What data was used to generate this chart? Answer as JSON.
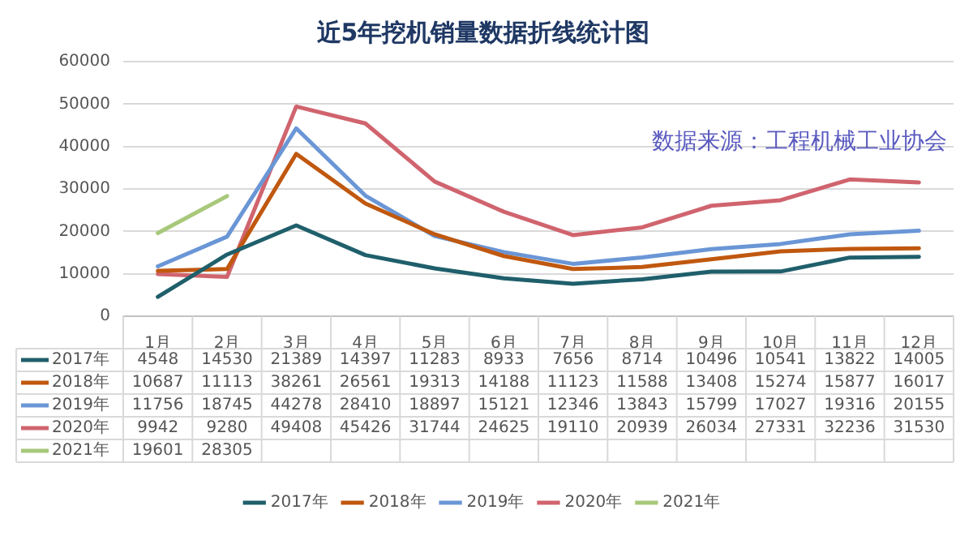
{
  "chart_data": {
    "type": "line",
    "title": "近5年挖机销量数据折线统计图",
    "categories": [
      "1月",
      "2月",
      "3月",
      "4月",
      "5月",
      "6月",
      "7月",
      "8月",
      "9月",
      "10月",
      "11月",
      "12月"
    ],
    "series": [
      {
        "name": "2017年",
        "color": "#1f5f6b",
        "values": [
          4548,
          14530,
          21389,
          14397,
          11283,
          8933,
          7656,
          8714,
          10496,
          10541,
          13822,
          14005
        ]
      },
      {
        "name": "2018年",
        "color": "#c0580f",
        "values": [
          10687,
          11113,
          38261,
          26561,
          19313,
          14188,
          11123,
          11588,
          13408,
          15274,
          15877,
          16017
        ]
      },
      {
        "name": "2019年",
        "color": "#6a96d6",
        "values": [
          11756,
          18745,
          44278,
          28410,
          18897,
          15121,
          12346,
          13843,
          15799,
          17027,
          19316,
          20155
        ]
      },
      {
        "name": "2020年",
        "color": "#d0646e",
        "values": [
          9942,
          9280,
          49408,
          45426,
          31744,
          24625,
          19110,
          20939,
          26034,
          27331,
          32236,
          31530
        ]
      },
      {
        "name": "2021年",
        "color": "#a8c87a",
        "values": [
          19601,
          28305,
          null,
          null,
          null,
          null,
          null,
          null,
          null,
          null,
          null,
          null
        ]
      }
    ],
    "ylim": [
      0,
      60000
    ],
    "yticks": [
      0,
      10000,
      20000,
      30000,
      40000,
      50000,
      60000
    ],
    "grid": "y",
    "legend": "bottom",
    "marker": "none",
    "line_style": "solid",
    "data_labels": true,
    "annotations": [
      "数据来源：工程机械工业协会"
    ]
  }
}
